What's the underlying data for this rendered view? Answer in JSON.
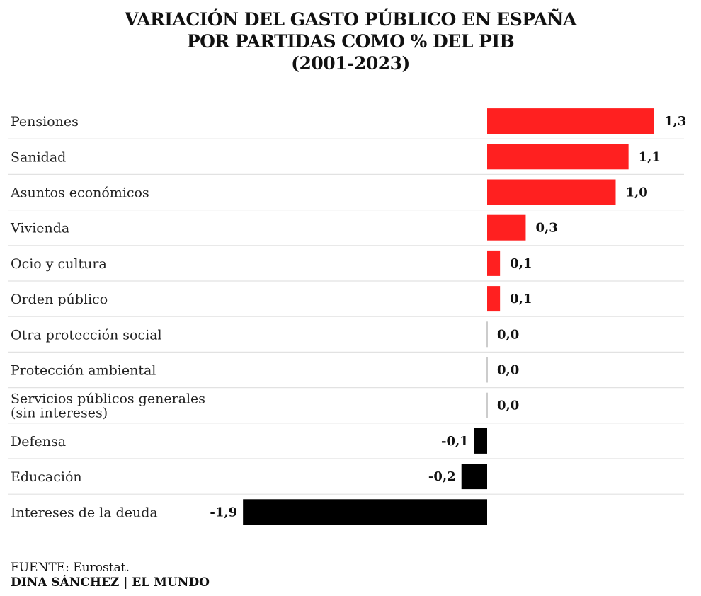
{
  "header": {
    "title_lines": [
      "VARIACIÓN DEL GASTO PÚBLICO EN ESPAÑA",
      "POR PARTIDAS COMO % DEL PIB",
      "(2001-2023)"
    ]
  },
  "chart_data": {
    "type": "bar",
    "orientation": "horizontal",
    "title": "VARIACIÓN DEL GASTO PÚBLICO EN ESPAÑA POR PARTIDAS COMO % DEL PIB (2001-2023)",
    "categories": [
      [
        "Pensiones"
      ],
      [
        "Sanidad"
      ],
      [
        "Asuntos económicos"
      ],
      [
        "Vivienda"
      ],
      [
        "Ocio y cultura"
      ],
      [
        "Orden público"
      ],
      [
        "Otra protección social"
      ],
      [
        "Protección ambiental"
      ],
      [
        "Servicios públicos generales",
        "(sin intereses)"
      ],
      [
        "Defensa"
      ],
      [
        "Educación"
      ],
      [
        "Intereses de la deuda"
      ]
    ],
    "values": [
      1.3,
      1.1,
      1.0,
      0.3,
      0.1,
      0.1,
      0.0,
      0.0,
      0.0,
      -0.1,
      -0.2,
      -1.9
    ],
    "value_labels": [
      "1,3",
      "1,1",
      "1,0",
      "0,3",
      "0,1",
      "0,1",
      "0,0",
      "0,0",
      "0,0",
      "-0,1",
      "-0,2",
      "-1,9"
    ],
    "xlim": [
      -1.9,
      1.3
    ],
    "colors": {
      "positive": "#ff2020",
      "negative": "#000000",
      "zero_line": "#cccccc",
      "separator": "#e2e2e2"
    },
    "grid": false,
    "legend": "none"
  },
  "footer": {
    "source": "FUENTE: Eurostat.",
    "credit": "DINA SÁNCHEZ | EL MUNDO"
  }
}
